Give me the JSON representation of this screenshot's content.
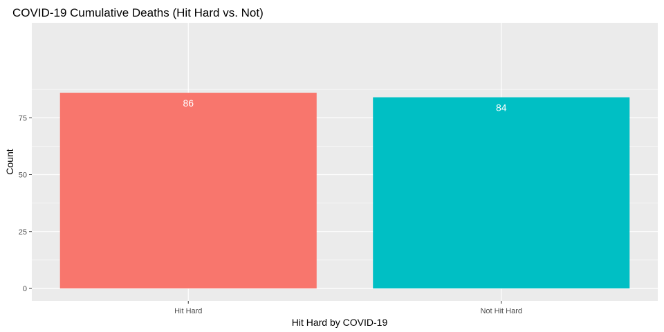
{
  "chart_data": {
    "type": "bar",
    "title": "COVID-19 Cumulative Deaths (Hit Hard vs. Not)",
    "xlabel": "Hit Hard by COVID-19",
    "ylabel": "Count",
    "categories": [
      "Hit Hard",
      "Not Hit Hard"
    ],
    "values": [
      86,
      84
    ],
    "data_labels": [
      "86",
      "84"
    ],
    "colors": [
      "#F8766D",
      "#00BFC4"
    ],
    "ylim": [
      0,
      90
    ],
    "yticks": [
      0,
      25,
      50,
      75
    ],
    "ytick_labels": [
      "0",
      "25",
      "50",
      "75"
    ],
    "grid": true,
    "legend": "none",
    "panel_background": "#EBEBEB",
    "grid_color": "#FFFFFF"
  }
}
